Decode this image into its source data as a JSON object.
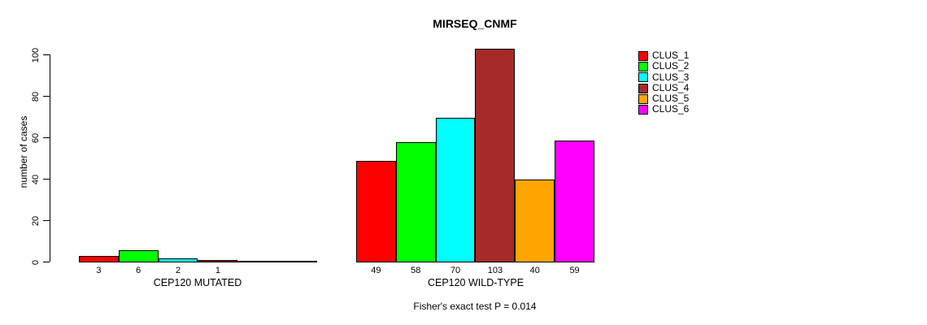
{
  "chart_data": {
    "type": "bar",
    "title": "MIRSEQ_CNMF",
    "ylabel": "number of cases",
    "xlabel": "",
    "ylim": [
      0,
      100
    ],
    "yticks": [
      0,
      20,
      40,
      60,
      80,
      100
    ],
    "grid": false,
    "legend_position": "top-right",
    "categories": [
      "CEP120 MUTATED",
      "CEP120 WILD-TYPE"
    ],
    "series": [
      {
        "name": "CLUS_1",
        "color": "#FF0000",
        "values": [
          3,
          49
        ]
      },
      {
        "name": "CLUS_2",
        "color": "#00FF00",
        "values": [
          6,
          58
        ]
      },
      {
        "name": "CLUS_3",
        "color": "#00FFFF",
        "values": [
          2,
          70
        ]
      },
      {
        "name": "CLUS_4",
        "color": "#A52A2A",
        "values": [
          1,
          103
        ]
      },
      {
        "name": "CLUS_5",
        "color": "#FFA500",
        "values": [
          0,
          40
        ]
      },
      {
        "name": "CLUS_6",
        "color": "#FF00FF",
        "values": [
          0,
          59
        ]
      }
    ],
    "bar_value_labels_shown": [
      "3",
      "6",
      "2",
      "1",
      "49",
      "58",
      "70",
      "103",
      "40",
      "59"
    ],
    "annotations": [
      "Fisher's exact test P = 0.014"
    ]
  },
  "colors": {
    "background": "#FFFFFF",
    "axis": "#000000",
    "text": "#000000"
  }
}
